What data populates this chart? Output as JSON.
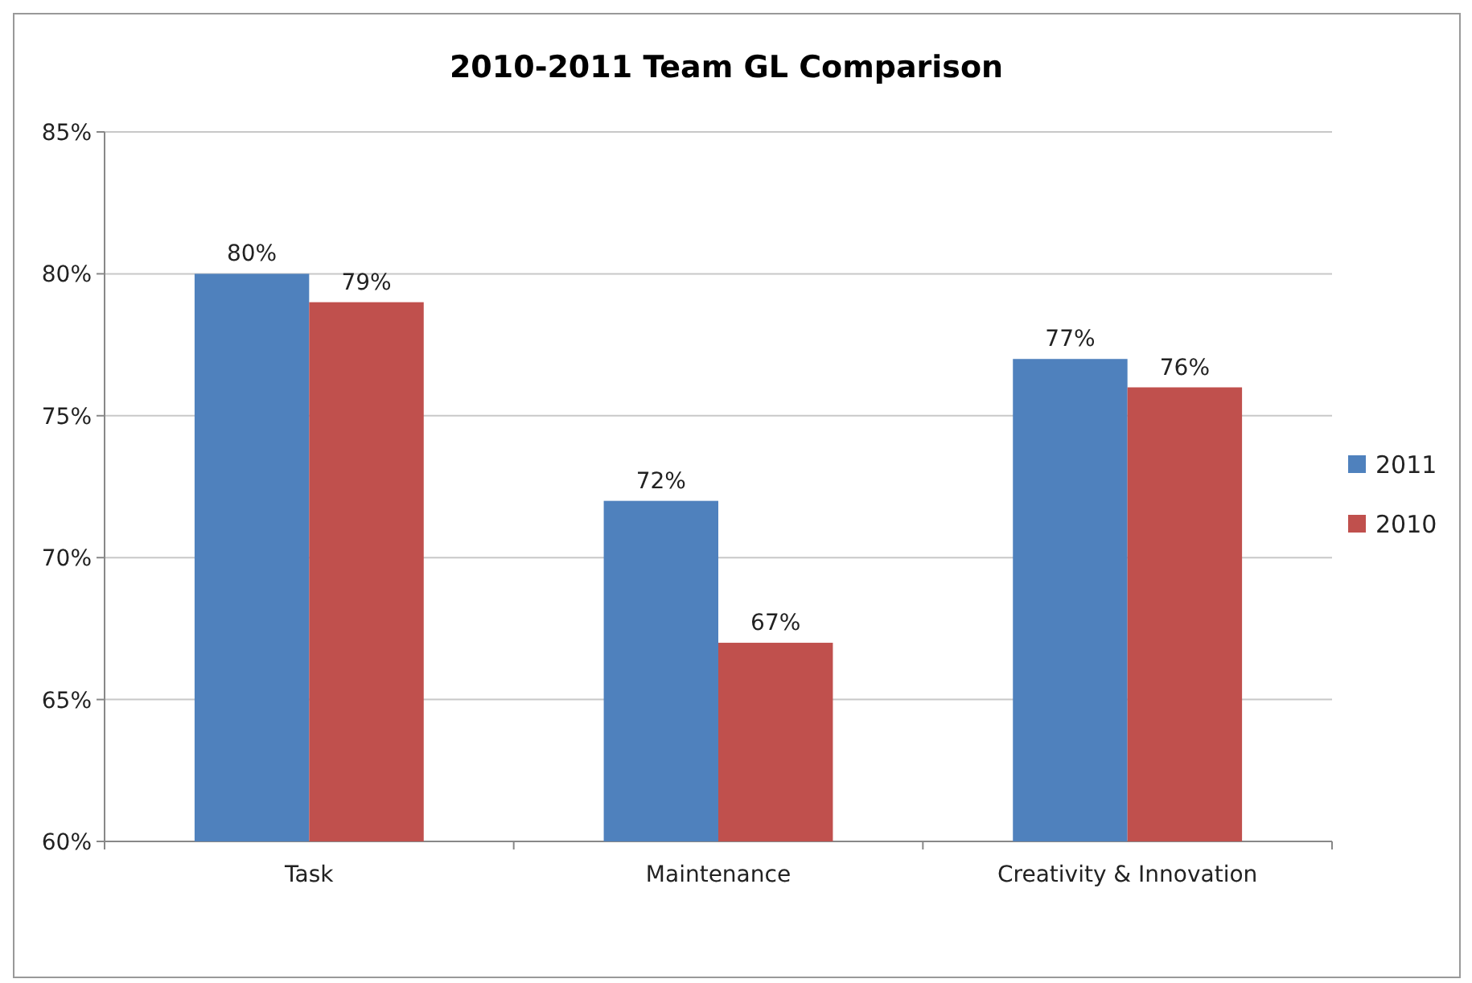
{
  "chart_data": {
    "type": "bar",
    "title": "2010-2011 Team GL Comparison",
    "categories": [
      "Task",
      "Maintenance",
      "Creativity & Innovation"
    ],
    "series": [
      {
        "name": "2011",
        "color": "#4f81bd",
        "values": [
          80,
          72,
          77
        ],
        "value_labels": [
          "80%",
          "72%",
          "77%"
        ]
      },
      {
        "name": "2010",
        "color": "#c0504d",
        "values": [
          79,
          67,
          76
        ],
        "value_labels": [
          "79%",
          "67%",
          "76%"
        ]
      }
    ],
    "ylim": [
      60,
      85
    ],
    "yticks": [
      {
        "value": 60,
        "label": "60%"
      },
      {
        "value": 65,
        "label": "65%"
      },
      {
        "value": 70,
        "label": "70%"
      },
      {
        "value": 75,
        "label": "75%"
      },
      {
        "value": 80,
        "label": "80%"
      },
      {
        "value": 85,
        "label": "85%"
      }
    ],
    "grid": "y",
    "legend": "right"
  }
}
